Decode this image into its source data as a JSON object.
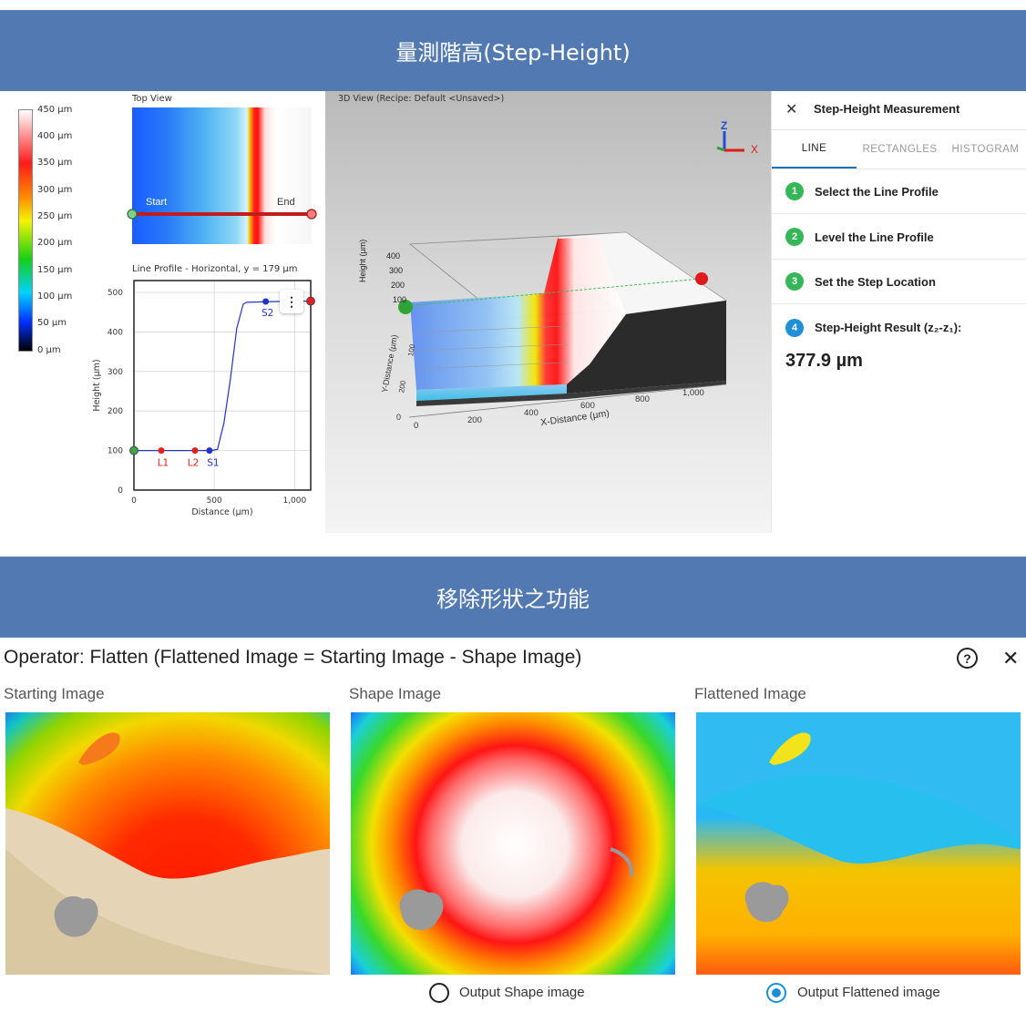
{
  "banner_top": {
    "title": "量測階高(Step-Height)"
  },
  "banner_bottom": {
    "title": "移除形狀之功能"
  },
  "color_scale": {
    "labels": [
      "450 µm",
      "400 µm",
      "350 µm",
      "300 µm",
      "250 µm",
      "200 µm",
      "150 µm",
      "100 µm",
      "50 µm",
      "0 µm"
    ]
  },
  "top_view": {
    "title": "Top View",
    "start_label": "Start",
    "end_label": "End"
  },
  "line_profile": {
    "title": "Line Profile - Horizontal, y = 179 µm",
    "menu_icon": "more-vertical-icon"
  },
  "chart_data": {
    "type": "line",
    "title": "Line Profile - Horizontal, y = 179 µm",
    "xlabel": "Distance (µm)",
    "ylabel": "Height (µm)",
    "xlim": [
      0,
      1100
    ],
    "ylim": [
      0,
      530
    ],
    "x_ticks": [
      0,
      500,
      1000
    ],
    "x_tick_labels": [
      "0",
      "500",
      "1,000"
    ],
    "y_ticks": [
      0,
      100,
      200,
      300,
      400,
      500
    ],
    "y_tick_labels": [
      "0",
      "100",
      "200",
      "300",
      "400",
      "500"
    ],
    "grid": true,
    "series": [
      {
        "x": [
          0,
          100,
          200,
          300,
          400,
          480,
          520,
          560,
          600,
          640,
          680,
          700,
          800,
          900,
          1000,
          1060,
          1100
        ],
        "y": [
          100,
          100,
          100,
          100,
          100,
          100,
          103,
          170,
          280,
          410,
          470,
          475,
          476,
          477,
          478,
          478,
          478
        ]
      }
    ],
    "markers": [
      {
        "label": "L1",
        "x": 170,
        "y": 100,
        "color": "#e32020"
      },
      {
        "label": "L2",
        "x": 380,
        "y": 100,
        "color": "#e32020"
      },
      {
        "label": "S1",
        "x": 470,
        "y": 100,
        "color": "#2233cc"
      },
      {
        "label": "S2",
        "x": 820,
        "y": 477,
        "color": "#2233cc"
      }
    ],
    "endpoints": [
      {
        "x": 0,
        "y": 100,
        "color": "#3fa34d"
      },
      {
        "x": 1100,
        "y": 478,
        "color": "#e32020"
      }
    ]
  },
  "view3d": {
    "title": "3D View (Recipe: Default <Unsaved>)",
    "axis_z": "Z",
    "axis_x": "X",
    "x_axis_label": "X-Distance (µm)",
    "x_ticks": [
      "0",
      "200",
      "400",
      "600",
      "800",
      "1,000"
    ],
    "height_label": "Height (µm)",
    "height_ticks": [
      "400",
      "300",
      "200",
      "100"
    ],
    "zero_label": "0",
    "y_axis_label": "Y-Distance (µm)",
    "y_ticks": [
      "200",
      "100",
      "0"
    ]
  },
  "step_height_panel": {
    "title": "Step-Height Measurement",
    "close_icon": "close-icon",
    "tabs": [
      {
        "label": "LINE",
        "active": true
      },
      {
        "label": "RECTANGLES",
        "active": false
      },
      {
        "label": "HISTOGRAM",
        "active": false
      }
    ],
    "steps": [
      {
        "number": "1",
        "label": "Select the Line Profile"
      },
      {
        "number": "2",
        "label": "Level the Line Profile"
      },
      {
        "number": "3",
        "label": "Set the Step Location"
      },
      {
        "number": "4",
        "label": "Step-Height Result (z₂-z₁):"
      }
    ],
    "result": "377.9 µm",
    "colors": {
      "step_green": "#35b657",
      "step_blue": "#1f8fd6",
      "active_tab": "#1f6fc1"
    }
  },
  "operator": {
    "title": "Operator: Flatten (Flattened Image = Starting Image - Shape Image)",
    "help_icon": "help-circle-icon",
    "close_icon": "close-icon",
    "images": [
      {
        "label": "Starting Image"
      },
      {
        "label": "Shape Image"
      },
      {
        "label": "Flattened Image"
      }
    ],
    "options": [
      {
        "label": "Output Shape image",
        "selected": false
      },
      {
        "label": "Output Flattened image",
        "selected": true
      }
    ]
  }
}
